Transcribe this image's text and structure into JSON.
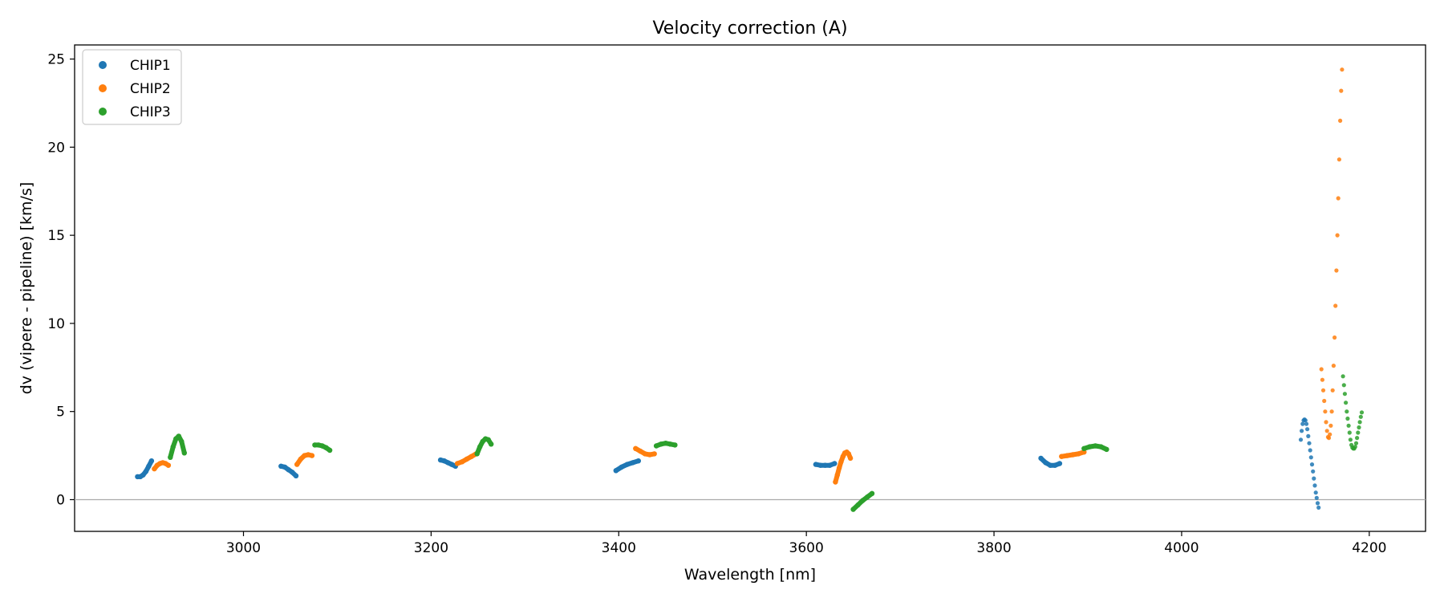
{
  "chart_data": {
    "type": "scatter",
    "title": "Velocity correction (A)",
    "xlabel": "Wavelength [nm]",
    "ylabel": "dv (vipere - pipeline) [km/s]",
    "xlim": [
      2820,
      4260
    ],
    "ylim": [
      -1.8,
      25.8
    ],
    "xticks": [
      3000,
      3200,
      3400,
      3600,
      3800,
      4000,
      4200
    ],
    "yticks": [
      0,
      5,
      10,
      15,
      20,
      25
    ],
    "grid": false,
    "reference_line_y": 0,
    "legend_position": "top-left",
    "series": [
      {
        "name": "CHIP1",
        "color": "#1f77b4",
        "segments": [
          {
            "x": [
              2887,
              2890,
              2893,
              2896,
              2899,
              2902
            ],
            "y": [
              1.3,
              1.3,
              1.4,
              1.6,
              1.9,
              2.2
            ],
            "marker": "thick"
          },
          {
            "x": [
              3040,
              3044,
              3048,
              3052,
              3056
            ],
            "y": [
              1.9,
              1.85,
              1.7,
              1.55,
              1.35
            ],
            "marker": "thick"
          },
          {
            "x": [
              3210,
              3214,
              3218,
              3222,
              3226
            ],
            "y": [
              2.25,
              2.2,
              2.1,
              2.0,
              1.9
            ],
            "marker": "thick"
          },
          {
            "x": [
              3397,
              3403,
              3409,
              3415,
              3421
            ],
            "y": [
              1.65,
              1.85,
              2.0,
              2.1,
              2.2
            ],
            "marker": "thick"
          },
          {
            "x": [
              3610,
              3615,
              3620,
              3625,
              3630
            ],
            "y": [
              2.0,
              1.95,
              1.95,
              1.95,
              2.05
            ],
            "marker": "thick"
          },
          {
            "x": [
              3850,
              3855,
              3860,
              3865,
              3870
            ],
            "y": [
              2.35,
              2.1,
              1.95,
              1.95,
              2.05
            ],
            "marker": "thick"
          },
          {
            "x": [
              4127,
              4128,
              4129,
              4130,
              4131,
              4132,
              4133,
              4134,
              4135,
              4136,
              4137,
              4138,
              4139,
              4140,
              4141,
              4142,
              4143,
              4144,
              4145,
              4146
            ],
            "y": [
              3.4,
              3.9,
              4.3,
              4.5,
              4.55,
              4.5,
              4.3,
              4.0,
              3.6,
              3.2,
              2.8,
              2.4,
              2.0,
              1.6,
              1.2,
              0.8,
              0.4,
              0.1,
              -0.2,
              -0.45
            ],
            "marker": "small"
          }
        ]
      },
      {
        "name": "CHIP2",
        "color": "#ff7f0e",
        "segments": [
          {
            "x": [
              2905,
              2908,
              2911,
              2914,
              2917,
              2920
            ],
            "y": [
              1.75,
              1.95,
              2.05,
              2.1,
              2.05,
              1.95
            ],
            "marker": "thick"
          },
          {
            "x": [
              3057,
              3061,
              3065,
              3069,
              3073
            ],
            "y": [
              2.0,
              2.3,
              2.5,
              2.55,
              2.5
            ],
            "marker": "thick"
          },
          {
            "x": [
              3228,
              3233,
              3238,
              3243,
              3248
            ],
            "y": [
              2.05,
              2.15,
              2.3,
              2.45,
              2.6
            ],
            "marker": "thick"
          },
          {
            "x": [
              3418,
              3423,
              3428,
              3433,
              3438
            ],
            "y": [
              2.9,
              2.75,
              2.6,
              2.55,
              2.6
            ],
            "marker": "thick"
          },
          {
            "x": [
              3631,
              3633,
              3635,
              3637,
              3639,
              3641,
              3643,
              3645,
              3647
            ],
            "y": [
              1.0,
              1.4,
              1.8,
              2.15,
              2.45,
              2.65,
              2.7,
              2.6,
              2.35
            ],
            "marker": "thick"
          },
          {
            "x": [
              3872,
              3878,
              3884,
              3890,
              3896
            ],
            "y": [
              2.45,
              2.5,
              2.55,
              2.6,
              2.7
            ],
            "marker": "thick"
          },
          {
            "x": [
              4149,
              4150,
              4151,
              4152,
              4153,
              4154,
              4155,
              4156,
              4157,
              4158,
              4159,
              4160,
              4161,
              4162,
              4163,
              4164,
              4165,
              4166,
              4167,
              4168,
              4169,
              4170,
              4171
            ],
            "y": [
              7.4,
              6.8,
              6.2,
              5.6,
              5.0,
              4.4,
              3.9,
              3.55,
              3.5,
              3.7,
              4.2,
              5.0,
              6.2,
              7.6,
              9.2,
              11.0,
              13.0,
              15.0,
              17.1,
              19.3,
              21.5,
              23.2,
              24.4
            ],
            "marker": "small"
          }
        ]
      },
      {
        "name": "CHIP3",
        "color": "#2ca02c",
        "segments": [
          {
            "x": [
              2922,
              2925,
              2928,
              2931,
              2934,
              2937
            ],
            "y": [
              2.4,
              3.0,
              3.45,
              3.6,
              3.3,
              2.65
            ],
            "marker": "thick"
          },
          {
            "x": [
              3076,
              3080,
              3084,
              3088,
              3092
            ],
            "y": [
              3.1,
              3.1,
              3.05,
              2.95,
              2.8
            ],
            "marker": "thick"
          },
          {
            "x": [
              3249,
              3252,
              3255,
              3258,
              3261,
              3264
            ],
            "y": [
              2.6,
              3.0,
              3.3,
              3.45,
              3.4,
              3.15
            ],
            "marker": "thick"
          },
          {
            "x": [
              3440,
              3445,
              3450,
              3455,
              3460
            ],
            "y": [
              3.05,
              3.15,
              3.2,
              3.15,
              3.1
            ],
            "marker": "thick"
          },
          {
            "x": [
              3650,
              3655,
              3660,
              3665,
              3670
            ],
            "y": [
              -0.55,
              -0.3,
              -0.05,
              0.15,
              0.35
            ],
            "marker": "thick"
          },
          {
            "x": [
              3896,
              3902,
              3908,
              3914,
              3920
            ],
            "y": [
              2.9,
              3.0,
              3.05,
              3.0,
              2.85
            ],
            "marker": "thick"
          },
          {
            "x": [
              4172,
              4173,
              4174,
              4175,
              4176,
              4177,
              4178,
              4179,
              4180,
              4181,
              4182,
              4183,
              4184,
              4185,
              4186,
              4187,
              4188,
              4189,
              4190,
              4191,
              4192
            ],
            "y": [
              7.0,
              6.5,
              6.0,
              5.5,
              5.0,
              4.6,
              4.2,
              3.8,
              3.4,
              3.1,
              2.95,
              2.9,
              2.9,
              3.0,
              3.2,
              3.5,
              3.8,
              4.1,
              4.4,
              4.7,
              4.95
            ],
            "marker": "small"
          }
        ]
      }
    ]
  }
}
